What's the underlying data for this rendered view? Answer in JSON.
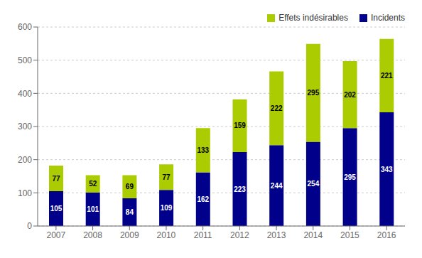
{
  "chart_data": {
    "type": "bar",
    "stacked": true,
    "categories": [
      "2007",
      "2008",
      "2009",
      "2010",
      "2011",
      "2012",
      "2013",
      "2014",
      "2015",
      "2016"
    ],
    "series": [
      {
        "name": "Incidents",
        "color": "#00008B",
        "values": [
          105,
          101,
          84,
          109,
          162,
          223,
          244,
          254,
          295,
          343
        ]
      },
      {
        "name": "Effets indésirables",
        "color": "#AACC00",
        "values": [
          77,
          52,
          69,
          77,
          133,
          159,
          222,
          295,
          202,
          221
        ]
      }
    ],
    "ylim": [
      0,
      600
    ],
    "yticks": [
      0,
      100,
      200,
      300,
      400,
      500,
      600
    ],
    "grid": true,
    "legend": "upper right",
    "data_labels": true
  }
}
